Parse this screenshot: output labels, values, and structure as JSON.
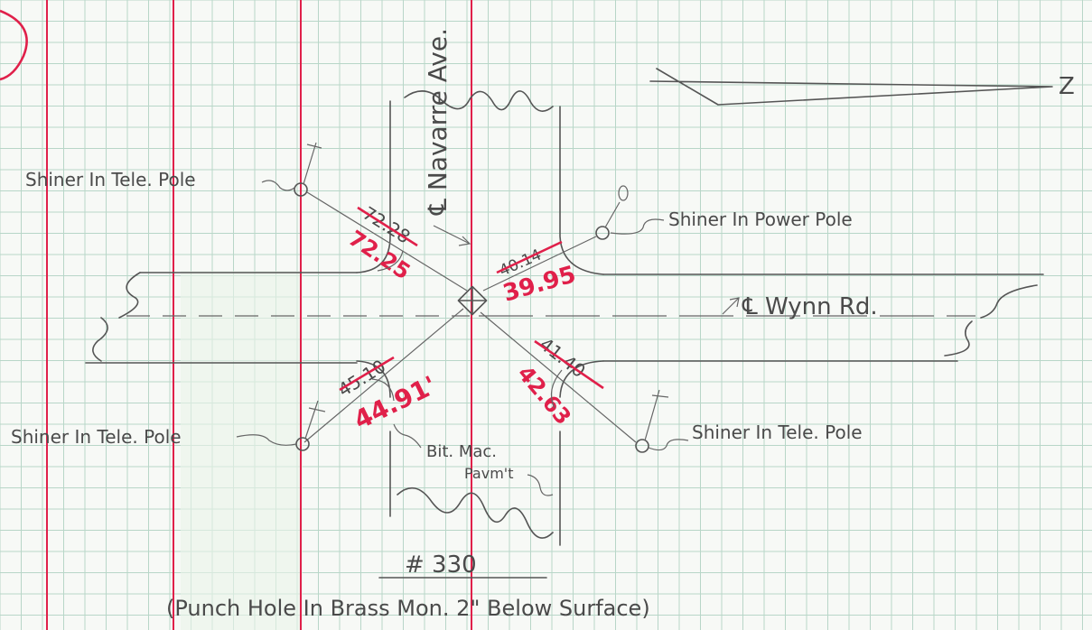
{
  "colors": {
    "paper": "#f7f9f6",
    "grid": "#b8d6c8",
    "margin_lines": "#e0204a",
    "pencil": "#555555",
    "red_ink": "#e0204a"
  },
  "sheet_mark": "",
  "streets": {
    "ns": "℄ Navarre Ave.",
    "ew": "℄ Wynn Rd."
  },
  "north_arrow": "Z",
  "monuments": {
    "nw": {
      "label": "Shiner In Tele. Pole",
      "orig": "72.28",
      "corr": "72.25"
    },
    "ne": {
      "label": "Shiner In Power Pole",
      "orig": "40.14",
      "corr": "39.95"
    },
    "sw": {
      "label": "Shiner In Tele. Pole",
      "orig": "45.10",
      "corr": "44.91'"
    },
    "se": {
      "label": "Shiner In Tele. Pole",
      "orig": "41.40",
      "corr": "42.63"
    }
  },
  "pavement": {
    "line1": "Bit. Mac.",
    "line2": "Pavm't"
  },
  "station_number": "# 330",
  "footer_note": "(Punch Hole In Brass Mon. 2\" Below Surface)"
}
